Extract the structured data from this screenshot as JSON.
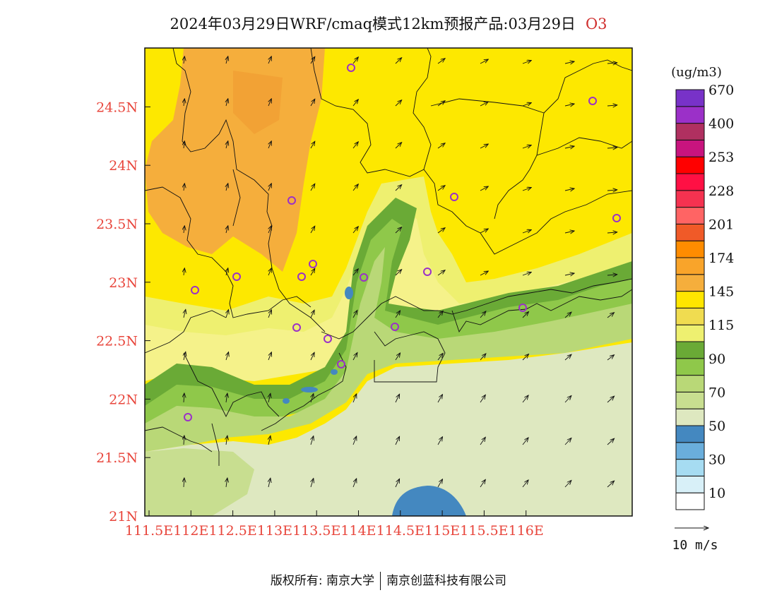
{
  "title": {
    "main": "2024年03月29日WRF/cmaq模式12km预报产品:03月29日",
    "species": "O3"
  },
  "axes": {
    "x_ticks": [
      "111.5E",
      "112E",
      "112.5E",
      "113E",
      "113.5E",
      "114E",
      "114.5E",
      "115E",
      "115.5E",
      "116E"
    ],
    "y_ticks": [
      "21N",
      "21.5N",
      "22N",
      "22.5N",
      "23N",
      "23.5N",
      "24N",
      "24.5N"
    ],
    "tick_color": "#e8463c"
  },
  "legend": {
    "unit": "(ug/m3)",
    "labels": [
      "10",
      "30",
      "50",
      "70",
      "90",
      "115",
      "145",
      "174",
      "201",
      "228",
      "253",
      "400",
      "670"
    ],
    "colors": [
      "#ffffff",
      "#d8f0f8",
      "#a6dcf2",
      "#6aaedc",
      "#4488c0",
      "#dee8c0",
      "#c8de90",
      "#b9d877",
      "#8fc84a",
      "#6aaa36",
      "#eef070",
      "#f0dc50",
      "#ffe600",
      "#f5ae3c",
      "#f9a42a",
      "#ff8c00",
      "#f05a28",
      "#ff6464",
      "#f53250",
      "#ff1044",
      "#ff0000",
      "#c8147e",
      "#b03060",
      "#9b30c8",
      "#7832c8"
    ],
    "wind_label": "10 m/s"
  },
  "footer": {
    "left": "版权所有: 南京大学",
    "right": "南京创蓝科技有限公司"
  }
}
